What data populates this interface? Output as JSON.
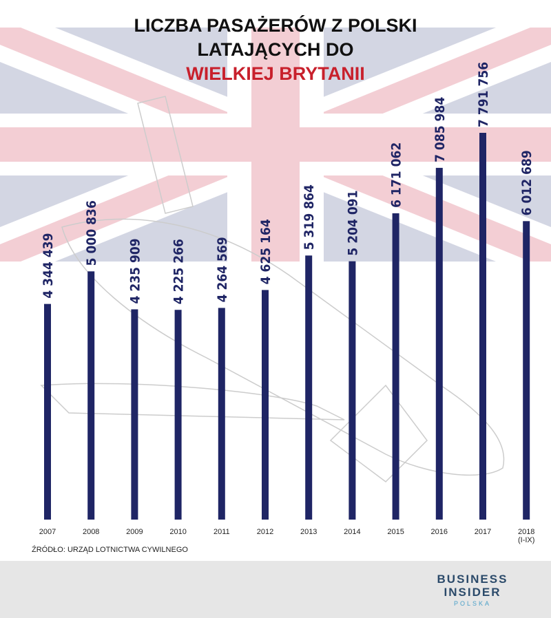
{
  "chart_data": {
    "type": "bar",
    "title": [
      "LICZBA PASAŻERÓW Z POLSKI",
      "LATAJĄCYCH DO",
      "WIELKIEJ BRYTANII"
    ],
    "categories": [
      "2007",
      "2008",
      "2009",
      "2010",
      "2011",
      "2012",
      "2013",
      "2014",
      "2015",
      "2016",
      "2017",
      "2018\n(I-IX)"
    ],
    "values": [
      4344439,
      5000836,
      4235909,
      4225266,
      4264569,
      4625164,
      5319864,
      5204091,
      6171062,
      7085984,
      7791756,
      6012689
    ],
    "value_labels": [
      "4 344 439",
      "5 000 836",
      "4 235 909",
      "4 225 266",
      "4 264 569",
      "4 625 164",
      "5 319 864",
      "5 204 091",
      "6 171 062",
      "7 085 984",
      "7 791 756",
      "6 012 689"
    ],
    "color": "#1f2565",
    "source": "ŹRÓDŁO: URZĄD LOTNICTWA CYWILNEGO"
  },
  "logo": {
    "line1": "BUSINESS",
    "line2": "INSIDER",
    "line3": "POLSKA"
  }
}
